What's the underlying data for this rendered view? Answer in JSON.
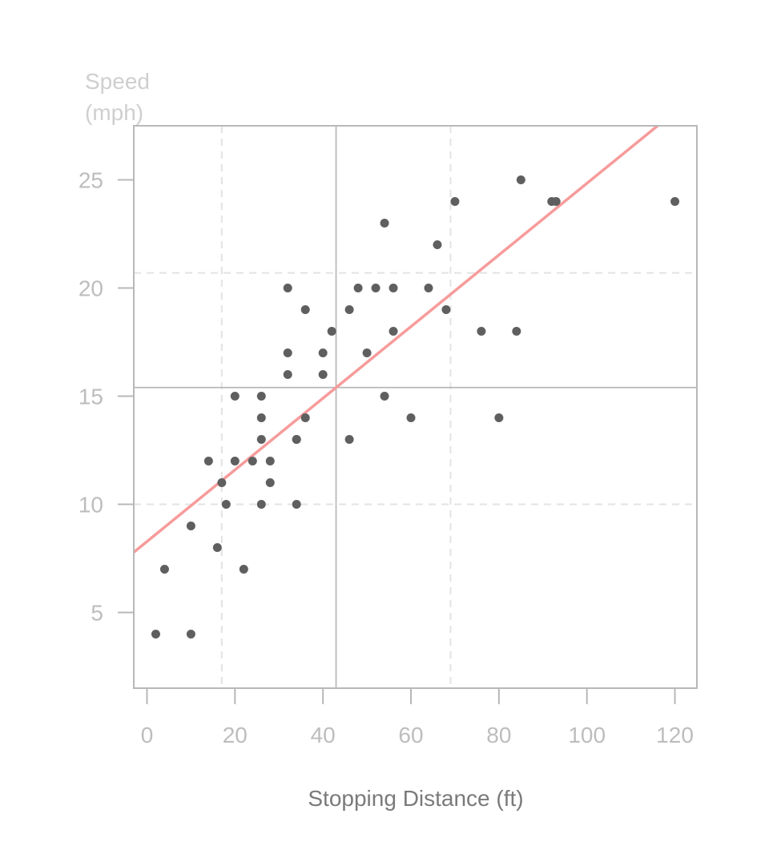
{
  "chart_data": {
    "type": "scatter",
    "xlabel": "Stopping Distance (ft)",
    "ylabel_lines": [
      "Speed",
      "(mph)"
    ],
    "xlim": [
      -3,
      125
    ],
    "ylim": [
      1.5,
      27.5
    ],
    "xticks": [
      0,
      20,
      40,
      60,
      80,
      100,
      120
    ],
    "yticks": [
      5,
      10,
      15,
      20,
      25
    ],
    "series": [
      {
        "points": [
          [
            2,
            4
          ],
          [
            10,
            4
          ],
          [
            4,
            7
          ],
          [
            22,
            7
          ],
          [
            16,
            8
          ],
          [
            10,
            9
          ],
          [
            18,
            10
          ],
          [
            26,
            10
          ],
          [
            34,
            10
          ],
          [
            17,
            11
          ],
          [
            28,
            11
          ],
          [
            14,
            12
          ],
          [
            20,
            12
          ],
          [
            24,
            12
          ],
          [
            28,
            12
          ],
          [
            26,
            13
          ],
          [
            34,
            13
          ],
          [
            34,
            13
          ],
          [
            46,
            13
          ],
          [
            26,
            14
          ],
          [
            36,
            14
          ],
          [
            60,
            14
          ],
          [
            80,
            14
          ],
          [
            20,
            15
          ],
          [
            26,
            15
          ],
          [
            54,
            15
          ],
          [
            32,
            16
          ],
          [
            40,
            16
          ],
          [
            32,
            17
          ],
          [
            40,
            17
          ],
          [
            50,
            17
          ],
          [
            42,
            18
          ],
          [
            56,
            18
          ],
          [
            76,
            18
          ],
          [
            84,
            18
          ],
          [
            36,
            19
          ],
          [
            46,
            19
          ],
          [
            68,
            19
          ],
          [
            32,
            20
          ],
          [
            48,
            20
          ],
          [
            52,
            20
          ],
          [
            56,
            20
          ],
          [
            64,
            20
          ],
          [
            66,
            22
          ],
          [
            54,
            23
          ],
          [
            70,
            24
          ],
          [
            92,
            24
          ],
          [
            93,
            24
          ],
          [
            120,
            24
          ],
          [
            85,
            25
          ]
        ],
        "color": "#5f5f5f"
      }
    ],
    "regression_line": {
      "intercept": 8.28,
      "slope": 0.1656,
      "color": "#f79b9b"
    },
    "mean_lines": {
      "x": 42.98,
      "y": 15.4,
      "color": "#b3b3b3"
    },
    "quantile_lines": {
      "x": [
        17,
        69
      ],
      "y": [
        10,
        20.7
      ],
      "color": "#e3e3e3"
    },
    "frame_color": "#b8b8b8",
    "grid": true
  }
}
